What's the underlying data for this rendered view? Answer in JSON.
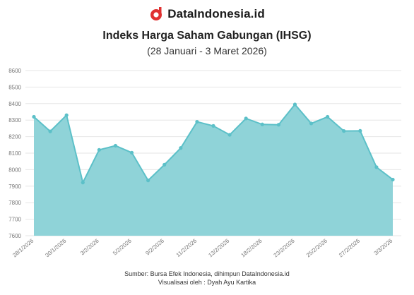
{
  "brand": {
    "name": "DataIndonesia.id",
    "logo_icon": "dataindonesia-logo-icon",
    "logo_color": "#e03131"
  },
  "chart_data": {
    "type": "area",
    "title": "Indeks Harga Saham Gabungan (IHSG)",
    "subtitle": "(28 Januari - 3 Maret 2026)",
    "xlabel": "",
    "ylabel": "",
    "ylim": [
      7600,
      8600
    ],
    "yticks": [
      7600,
      7700,
      7800,
      7900,
      8000,
      8100,
      8200,
      8300,
      8400,
      8500,
      8600
    ],
    "x": [
      "28/1/2026",
      "29/1/2026",
      "30/1/2026",
      "2/2/2026",
      "3/2/2026",
      "4/2/2026",
      "5/2/2026",
      "6/2/2026",
      "9/2/2026",
      "10/2/2026",
      "11/2/2026",
      "12/2/2026",
      "13/2/2026",
      "16/2/2026",
      "18/2/2026",
      "19/2/2026",
      "23/2/2026",
      "24/2/2026",
      "25/2/2026",
      "26/2/2026",
      "27/2/2026",
      "2/3/2026",
      "3/3/2026"
    ],
    "xtick_labels": [
      "28/1/2026",
      "30/1/2026",
      "3/2/2026",
      "5/2/2026",
      "9/2/2026",
      "11/2/2026",
      "13/2/2026",
      "18/2/2026",
      "23/2/2026",
      "25/2/2026",
      "27/2/2026",
      "3/3/2026"
    ],
    "values": [
      8320,
      8232,
      8330,
      7922,
      8120,
      8145,
      8103,
      7935,
      8030,
      8131,
      8290,
      8265,
      8211,
      8310,
      8274,
      8272,
      8395,
      8280,
      8320,
      8234,
      8235,
      8015,
      7940
    ],
    "grid": true,
    "colors": {
      "fill": "#8fd3d8",
      "line": "#5cc0c8",
      "grid": "#e6e6e6",
      "axis": "#cccccc"
    }
  },
  "footer": {
    "source": "Sumber: Bursa Efek Indonesia, dihimpun DataIndonesia.id",
    "credit": "Visualisasi oleh : Dyah Ayu Kartika"
  }
}
